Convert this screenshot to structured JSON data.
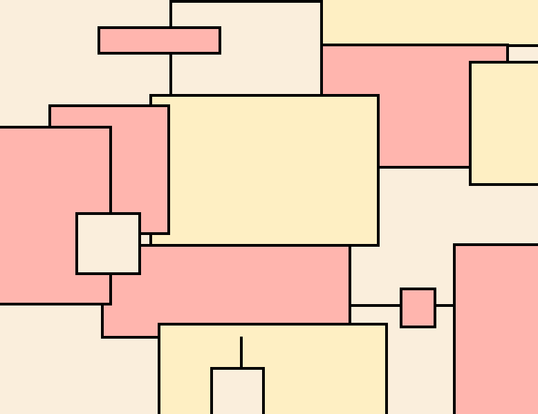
{
  "colors": {
    "background": "#FAEEDC",
    "cream": "#FAEEDC",
    "yellow": "#FEEFC3",
    "pink": "#FFB5AE",
    "outline": "#000000"
  },
  "rectangles": [
    {
      "name": "rect-yellow-top-right-bg",
      "fill": "yellow"
    },
    {
      "name": "rect-pink-upper-right",
      "fill": "pink"
    },
    {
      "name": "rect-yellow-right-edge",
      "fill": "yellow"
    },
    {
      "name": "rect-cream-top",
      "fill": "cream"
    },
    {
      "name": "rect-pink-top-bar",
      "fill": "pink"
    },
    {
      "name": "rect-yellow-large-center",
      "fill": "yellow"
    },
    {
      "name": "rect-pink-lower-center",
      "fill": "pink"
    },
    {
      "name": "rect-pink-left-mid",
      "fill": "pink"
    },
    {
      "name": "rect-pink-left-large",
      "fill": "pink"
    },
    {
      "name": "rect-cream-small-square",
      "fill": "cream"
    },
    {
      "name": "rect-yellow-bottom",
      "fill": "yellow"
    },
    {
      "name": "rect-cream-bottom-small",
      "fill": "cream"
    },
    {
      "name": "rect-pink-small-square",
      "fill": "pink"
    },
    {
      "name": "rect-pink-bottom-right",
      "fill": "pink"
    }
  ],
  "connectors": [
    {
      "name": "connector-cream-to-center"
    },
    {
      "name": "connector-lower-to-small-square"
    },
    {
      "name": "connector-small-square-to-right"
    },
    {
      "name": "connector-bottom-vertical"
    }
  ]
}
